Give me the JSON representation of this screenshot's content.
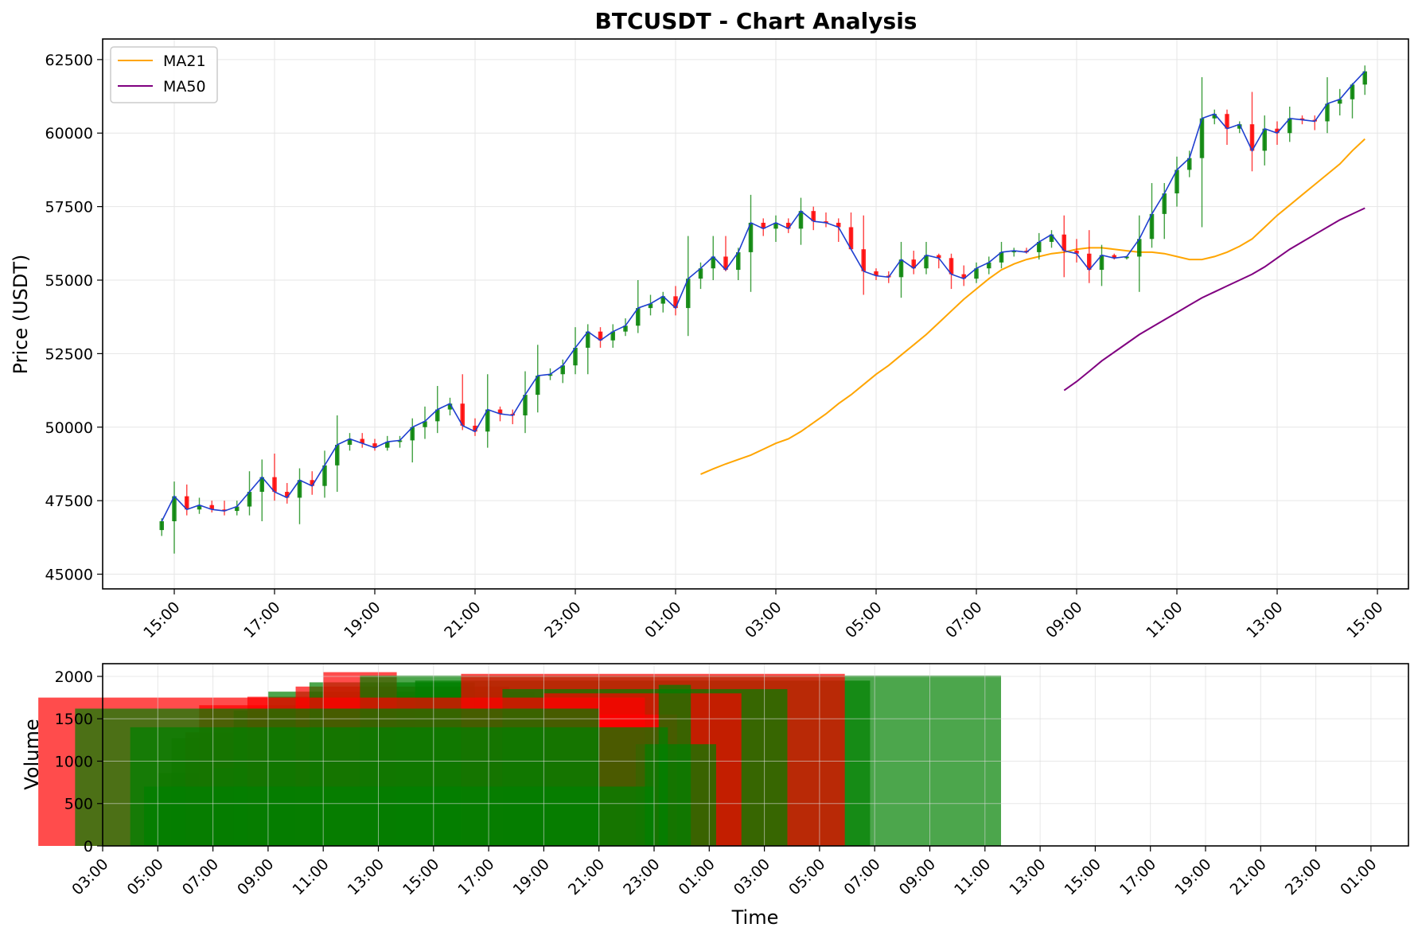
{
  "chart_data": [
    {
      "type": "candlestick",
      "title": "BTCUSDT - Chart Analysis",
      "xlabel": "",
      "ylabel": "Price (USDT)",
      "ylim": [
        44500,
        63200
      ],
      "yticks": [
        45000,
        47500,
        50000,
        52500,
        55000,
        57500,
        60000,
        62500
      ],
      "xticks": [
        "15:00",
        "17:00",
        "19:00",
        "21:00",
        "23:00",
        "01:00",
        "03:00",
        "05:00",
        "07:00",
        "09:00",
        "11:00",
        "13:00",
        "15:00"
      ],
      "x_start": "14:45",
      "interval_minutes": 15,
      "grid": true,
      "legend": {
        "position": "upper-left",
        "entries": [
          {
            "label": "MA21",
            "color": "#ffa500"
          },
          {
            "label": "MA50",
            "color": "#800080"
          }
        ]
      },
      "colors": {
        "up": "#008000",
        "down": "#ff0000",
        "close_line": "#1f3fd0",
        "ma21": "#ffa500",
        "ma50": "#800080"
      },
      "ohlc": [
        [
          46500,
          46900,
          46300,
          46800
        ],
        [
          46800,
          48150,
          45700,
          47650
        ],
        [
          47650,
          48050,
          47000,
          47200
        ],
        [
          47200,
          47600,
          47050,
          47350
        ],
        [
          47350,
          47500,
          47100,
          47200
        ],
        [
          47200,
          47500,
          47000,
          47150
        ],
        [
          47150,
          47500,
          47000,
          47300
        ],
        [
          47300,
          48500,
          47000,
          47800
        ],
        [
          47800,
          48900,
          46800,
          48300
        ],
        [
          48300,
          49100,
          47500,
          47800
        ],
        [
          47800,
          48100,
          47400,
          47600
        ],
        [
          47600,
          48600,
          46700,
          48200
        ],
        [
          48200,
          48500,
          47700,
          48000
        ],
        [
          48000,
          49200,
          47600,
          48700
        ],
        [
          48700,
          50400,
          47800,
          49400
        ],
        [
          49400,
          49800,
          49200,
          49600
        ],
        [
          49600,
          49800,
          49300,
          49450
        ],
        [
          49450,
          49600,
          49200,
          49300
        ],
        [
          49300,
          49700,
          49200,
          49500
        ],
        [
          49500,
          49700,
          49300,
          49550
        ],
        [
          49550,
          50300,
          48800,
          50000
        ],
        [
          50000,
          50700,
          49600,
          50200
        ],
        [
          50200,
          51400,
          49800,
          50600
        ],
        [
          50600,
          51000,
          50400,
          50800
        ],
        [
          50800,
          51800,
          49900,
          50050
        ],
        [
          50050,
          50300,
          49700,
          49850
        ],
        [
          49850,
          51800,
          49300,
          50600
        ],
        [
          50600,
          50700,
          50200,
          50450
        ],
        [
          50450,
          50600,
          50100,
          50400
        ],
        [
          50400,
          51900,
          49800,
          51100
        ],
        [
          51100,
          52800,
          50500,
          51750
        ],
        [
          51750,
          52000,
          51600,
          51800
        ],
        [
          51800,
          52300,
          51500,
          52100
        ],
        [
          52100,
          53400,
          51800,
          52700
        ],
        [
          52700,
          53500,
          51800,
          53250
        ],
        [
          53250,
          53400,
          52700,
          52950
        ],
        [
          52950,
          53500,
          52700,
          53250
        ],
        [
          53250,
          53700,
          53100,
          53450
        ],
        [
          53450,
          55000,
          53200,
          54050
        ],
        [
          54050,
          54500,
          53800,
          54200
        ],
        [
          54200,
          54600,
          53900,
          54450
        ],
        [
          54450,
          54800,
          53800,
          54050
        ],
        [
          54050,
          56500,
          53100,
          55050
        ],
        [
          55050,
          55600,
          54700,
          55400
        ],
        [
          55400,
          56500,
          55000,
          55800
        ],
        [
          55800,
          56500,
          55300,
          55350
        ],
        [
          55350,
          56100,
          55000,
          55950
        ],
        [
          55950,
          57900,
          54600,
          56950
        ],
        [
          56950,
          57100,
          56500,
          56750
        ],
        [
          56750,
          57200,
          56300,
          56950
        ],
        [
          56950,
          57100,
          56600,
          56750
        ],
        [
          56750,
          57800,
          56200,
          57350
        ],
        [
          57350,
          57500,
          56700,
          57000
        ],
        [
          57000,
          57300,
          56800,
          56950
        ],
        [
          56950,
          57100,
          56300,
          56800
        ],
        [
          56800,
          57300,
          56100,
          56050
        ],
        [
          56050,
          57200,
          54500,
          55300
        ],
        [
          55300,
          55400,
          55000,
          55150
        ],
        [
          55150,
          55300,
          54900,
          55100
        ],
        [
          55100,
          56300,
          54400,
          55700
        ],
        [
          55700,
          56000,
          55200,
          55400
        ],
        [
          55400,
          56300,
          55200,
          55850
        ],
        [
          55850,
          55900,
          55400,
          55750
        ],
        [
          55750,
          55900,
          54700,
          55200
        ],
        [
          55200,
          55500,
          54800,
          55050
        ],
        [
          55050,
          55600,
          54900,
          55400
        ],
        [
          55400,
          55800,
          55200,
          55600
        ],
        [
          55600,
          56300,
          55400,
          55950
        ],
        [
          55950,
          56100,
          55800,
          56000
        ],
        [
          56000,
          56100,
          55900,
          55950
        ],
        [
          55950,
          56600,
          55700,
          56300
        ],
        [
          56300,
          56700,
          56100,
          56550
        ],
        [
          56550,
          57200,
          55100,
          56000
        ],
        [
          56000,
          56400,
          55600,
          55900
        ],
        [
          55900,
          56700,
          54900,
          55350
        ],
        [
          55350,
          56200,
          54800,
          55850
        ],
        [
          55850,
          55900,
          55700,
          55750
        ],
        [
          55750,
          55800,
          55700,
          55800
        ],
        [
          55800,
          57200,
          54600,
          56400
        ],
        [
          56400,
          58300,
          56100,
          57250
        ],
        [
          57250,
          58300,
          56400,
          57950
        ],
        [
          57950,
          59200,
          57500,
          58750
        ],
        [
          58750,
          59400,
          58500,
          59150
        ],
        [
          59150,
          61900,
          56800,
          60500
        ],
        [
          60500,
          60800,
          60300,
          60650
        ],
        [
          60650,
          60800,
          59600,
          60150
        ],
        [
          60150,
          60400,
          60000,
          60300
        ],
        [
          60300,
          61400,
          58700,
          59400
        ],
        [
          59400,
          60600,
          58900,
          60150
        ],
        [
          60150,
          60400,
          59600,
          60000
        ],
        [
          60000,
          60900,
          59700,
          60500
        ],
        [
          60500,
          60600,
          60300,
          60450
        ],
        [
          60450,
          60600,
          60100,
          60400
        ],
        [
          60400,
          61900,
          60000,
          61000
        ],
        [
          61000,
          61500,
          60600,
          61150
        ],
        [
          61150,
          61700,
          60500,
          61650
        ],
        [
          61650,
          62300,
          61300,
          62100
        ]
      ],
      "series": [
        {
          "name": "MA21",
          "values": [
            48400,
            48580,
            48750,
            48900,
            49050,
            49250,
            49450,
            49600,
            49850,
            50150,
            50450,
            50800,
            51100,
            51450,
            51800,
            52100,
            52450,
            52800,
            53150,
            53550,
            53950,
            54350,
            54700,
            55050,
            55350,
            55550,
            55700,
            55800,
            55900,
            55950,
            56050,
            56100,
            56100,
            56050,
            56000,
            55950,
            55950,
            55900,
            55800,
            55700,
            55700,
            55800,
            55950,
            56150,
            56400,
            56800,
            57200,
            57550,
            57900,
            58250,
            58600,
            58950,
            59400,
            59800
          ]
        },
        {
          "name": "MA50",
          "values": [
            51250,
            51550,
            51900,
            52250,
            52550,
            52850,
            53150,
            53400,
            53650,
            53900,
            54150,
            54400,
            54600,
            54800,
            55000,
            55200,
            55450,
            55750,
            56050,
            56300,
            56550,
            56800,
            57050,
            57250,
            57450
          ]
        }
      ]
    },
    {
      "type": "bar",
      "title": "",
      "xlabel": "Time",
      "ylabel": "Volume",
      "ylim": [
        0,
        2150
      ],
      "yticks": [
        0,
        500,
        1000,
        1500,
        2000
      ],
      "xticks": [
        "03:00",
        "05:00",
        "07:00",
        "09:00",
        "11:00",
        "13:00",
        "15:00",
        "17:00",
        "19:00",
        "21:00",
        "23:00",
        "01:00",
        "03:00",
        "05:00",
        "07:00",
        "09:00",
        "11:00",
        "13:00",
        "15:00",
        "17:00",
        "19:00",
        "21:00",
        "23:00",
        "01:00"
      ],
      "grid": true,
      "colors": {
        "up": "#008000",
        "down": "#ff0000"
      },
      "bars": [
        {
          "start": "05:00",
          "end": "23:55",
          "value": 860,
          "color": "up"
        },
        {
          "start": "05:30",
          "end": "23:20",
          "value": 1270,
          "color": "up"
        },
        {
          "start": "06:00",
          "end": "22:55",
          "value": 1340,
          "color": "down"
        },
        {
          "start": "06:30",
          "end": "22:40",
          "value": 1660,
          "color": "down"
        },
        {
          "start": "07:00",
          "end": "23:10",
          "value": 920,
          "color": "up"
        },
        {
          "start": "07:45",
          "end": "21:10",
          "value": 1600,
          "color": "up"
        },
        {
          "start": "08:15",
          "end": "19:30",
          "value": 1760,
          "color": "down"
        },
        {
          "start": "09:00",
          "end": "18:40",
          "value": 1820,
          "color": "up"
        },
        {
          "start": "10:00",
          "end": "17:45",
          "value": 1880,
          "color": "down"
        },
        {
          "start": "10:30",
          "end": "16:30",
          "value": 1930,
          "color": "up"
        },
        {
          "start": "11:00",
          "end": "13:40",
          "value": 2050,
          "color": "down"
        },
        {
          "start": "12:20",
          "end": "11:35",
          "value": 2010,
          "color": "up"
        },
        {
          "start": "14:20",
          "end": "06:50",
          "value": 1950,
          "color": "up"
        },
        {
          "start": "16:00",
          "end": "05:55",
          "value": 2030,
          "color": "down"
        },
        {
          "start": "17:30",
          "end": "03:50",
          "value": 1850,
          "color": "up"
        },
        {
          "start": "19:00",
          "end": "02:10",
          "value": 1800,
          "color": "down"
        },
        {
          "start": "21:00",
          "end": "23:50",
          "value": 1550,
          "color": "down"
        },
        {
          "start": "22:20",
          "end": "01:15",
          "value": 1200,
          "color": "up"
        },
        {
          "start": "23:10",
          "end": "00:20",
          "value": 1900,
          "color": "up"
        },
        {
          "start": "00:40",
          "end": "22:40",
          "value": 1750,
          "color": "down"
        },
        {
          "start": "02:00",
          "end": "21:00",
          "value": 1620,
          "color": "up"
        },
        {
          "start": "04:00",
          "end": "23:30",
          "value": 1400,
          "color": "up"
        },
        {
          "start": "04:30",
          "end": "23:00",
          "value": 700,
          "color": "up"
        }
      ]
    }
  ]
}
